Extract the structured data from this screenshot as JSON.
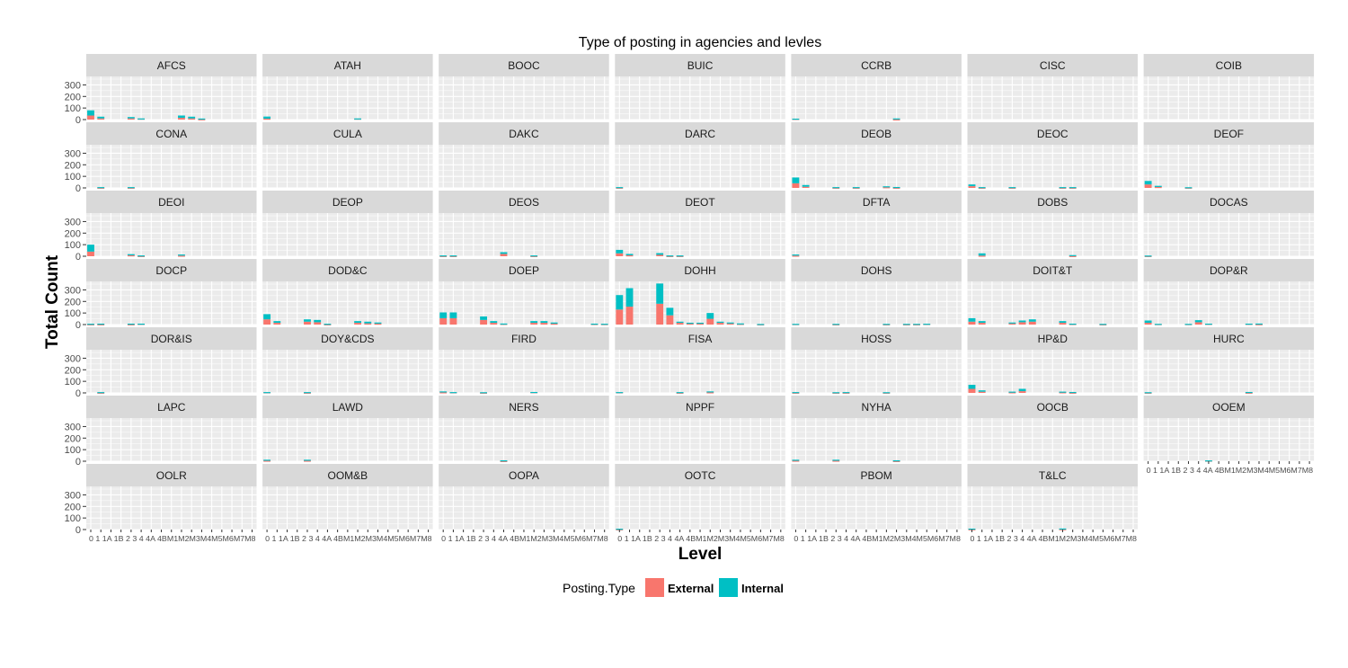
{
  "chart_data": {
    "type": "bar",
    "title": "Type of posting in agencies and levles",
    "xlabel": "Level",
    "ylabel": "Total Count",
    "stacked": true,
    "facet_wrap_columns": 7,
    "ylim": [
      0,
      350
    ],
    "y_ticks": [
      "0",
      "100",
      "200",
      "300"
    ],
    "grid": true,
    "legend_position": "bottom",
    "x_levels": [
      "0",
      "1",
      "1A",
      "1B",
      "2",
      "3",
      "4",
      "4A",
      "4B",
      "M1",
      "M2",
      "M3",
      "M4",
      "M5",
      "M6",
      "M7",
      "M8"
    ],
    "x_tick_text": "0   1 1A 1B  2   3   4 4A 4BM1M2M3M4M5M6M7M8",
    "legend": {
      "title": "Posting.Type",
      "items": [
        {
          "label": "External",
          "color": "#F8766D"
        },
        {
          "label": "Internal",
          "color": "#00BFC4"
        }
      ]
    },
    "series_order": [
      "External",
      "Internal"
    ],
    "panels": [
      {
        "name": "AFCS",
        "bars": {
          "0": [
            35,
            45
          ],
          "1": [
            10,
            15
          ],
          "2": [
            10,
            12
          ],
          "3": [
            8,
            2
          ],
          "M1": [
            15,
            20
          ],
          "M2": [
            10,
            15
          ],
          "M3": [
            3,
            6
          ]
        }
      },
      {
        "name": "ATAH",
        "bars": {
          "0": [
            8,
            18
          ],
          "M1": [
            8,
            2
          ]
        }
      },
      {
        "name": "BOOC",
        "bars": {}
      },
      {
        "name": "BUIC",
        "bars": {}
      },
      {
        "name": "CCRB",
        "bars": {
          "0": [
            6,
            2
          ],
          "M2": [
            2,
            8
          ]
        }
      },
      {
        "name": "CISC",
        "bars": {}
      },
      {
        "name": "COIB",
        "bars": {}
      },
      {
        "name": "CONA",
        "bars": {
          "1": [
            2,
            5
          ],
          "2": [
            2,
            5
          ]
        }
      },
      {
        "name": "CULA",
        "bars": {}
      },
      {
        "name": "DAKC",
        "bars": {}
      },
      {
        "name": "DARC",
        "bars": {
          "0": [
            2,
            5
          ]
        }
      },
      {
        "name": "DEOB",
        "bars": {
          "0": [
            40,
            50
          ],
          "1": [
            10,
            15
          ],
          "2": [
            2,
            5
          ],
          "4": [
            2,
            5
          ],
          "M1": [
            6,
            8
          ],
          "M2": [
            2,
            6
          ]
        }
      },
      {
        "name": "DEOC",
        "bars": {
          "0": [
            15,
            15
          ],
          "1": [
            2,
            5
          ],
          "2": [
            2,
            5
          ],
          "M1": [
            2,
            5
          ],
          "M2": [
            2,
            5
          ]
        }
      },
      {
        "name": "DEOF",
        "bars": {
          "0": [
            30,
            30
          ],
          "1": [
            8,
            10
          ],
          "2": [
            2,
            4
          ]
        }
      },
      {
        "name": "DEOI",
        "bars": {
          "0": [
            40,
            60
          ],
          "2": [
            8,
            10
          ],
          "3": [
            2,
            5
          ],
          "M1": [
            5,
            10
          ]
        }
      },
      {
        "name": "DEOP",
        "bars": {}
      },
      {
        "name": "DEOS",
        "bars": {
          "0": [
            2,
            5
          ],
          "1": [
            2,
            5
          ],
          "4": [
            20,
            15
          ],
          "M1": [
            2,
            5
          ]
        }
      },
      {
        "name": "DEOT",
        "bars": {
          "0": [
            25,
            30
          ],
          "1": [
            8,
            12
          ],
          "2": [
            12,
            15
          ],
          "3": [
            2,
            5
          ],
          "4": [
            2,
            5
          ]
        }
      },
      {
        "name": "DFTA",
        "bars": {
          "0": [
            5,
            10
          ]
        }
      },
      {
        "name": "DOBS",
        "bars": {
          "1": [
            5,
            20
          ],
          "M2": [
            2,
            8
          ]
        }
      },
      {
        "name": "DOCAS",
        "bars": {
          "0": [
            2,
            4
          ]
        }
      },
      {
        "name": "DOCP",
        "bars": {
          "0": [
            2,
            5
          ],
          "1": [
            2,
            6
          ],
          "2": [
            2,
            6
          ],
          "3": [
            6,
            2
          ]
        }
      },
      {
        "name": "DOD&C",
        "bars": {
          "0": [
            45,
            45
          ],
          "1": [
            15,
            15
          ],
          "2": [
            25,
            20
          ],
          "3": [
            20,
            20
          ],
          "4": [
            2,
            5
          ],
          "M1": [
            15,
            15
          ],
          "M2": [
            10,
            15
          ],
          "M3": [
            8,
            10
          ]
        }
      },
      {
        "name": "DOEP",
        "bars": {
          "0": [
            55,
            50
          ],
          "1": [
            55,
            50
          ],
          "2": [
            40,
            30
          ],
          "3": [
            15,
            15
          ],
          "4": [
            6,
            3
          ],
          "M1": [
            15,
            15
          ],
          "M2": [
            15,
            15
          ],
          "M3": [
            8,
            10
          ],
          "M7": [
            5,
            3
          ],
          "M8": [
            4,
            3
          ]
        }
      },
      {
        "name": "DOHH",
        "bars": {
          "0": [
            130,
            125
          ],
          "1": [
            155,
            160
          ],
          "2": [
            180,
            175
          ],
          "3": [
            80,
            65
          ],
          "4": [
            15,
            10
          ],
          "4A": [
            8,
            8
          ],
          "4B": [
            8,
            8
          ],
          "M1": [
            50,
            50
          ],
          "M2": [
            15,
            10
          ],
          "M3": [
            10,
            8
          ],
          "M4": [
            6,
            4
          ],
          "M6": [
            2,
            3
          ]
        }
      },
      {
        "name": "DOHS",
        "bars": {
          "0": [
            4,
            2
          ],
          "2": [
            2,
            4
          ],
          "M1": [
            2,
            4
          ],
          "M3": [
            2,
            4
          ],
          "M4": [
            2,
            4
          ],
          "M5": [
            5,
            2
          ]
        }
      },
      {
        "name": "DOIT&T",
        "bars": {
          "0": [
            25,
            30
          ],
          "1": [
            15,
            15
          ],
          "2": [
            10,
            8
          ],
          "3": [
            20,
            15
          ],
          "4": [
            25,
            20
          ],
          "M1": [
            15,
            15
          ],
          "M2": [
            5,
            3
          ],
          "M5": [
            2,
            4
          ]
        }
      },
      {
        "name": "DOP&R",
        "bars": {
          "0": [
            15,
            20
          ],
          "1": [
            4,
            2
          ],
          "2": [
            4,
            2
          ],
          "3": [
            20,
            18
          ],
          "4": [
            6,
            2
          ],
          "M2": [
            6,
            2
          ],
          "M3": [
            3,
            6
          ]
        }
      },
      {
        "name": "DOR&IS",
        "bars": {
          "1": [
            2,
            5
          ]
        }
      },
      {
        "name": "DOY&CDS",
        "bars": {
          "0": [
            5,
            2
          ],
          "2": [
            2,
            5
          ]
        }
      },
      {
        "name": "FIRD",
        "bars": {
          "0": [
            5,
            8
          ],
          "1": [
            5,
            2
          ],
          "2": [
            2,
            4
          ],
          "M1": [
            6,
            2
          ]
        }
      },
      {
        "name": "FISA",
        "bars": {
          "0": [
            5,
            2
          ],
          "4": [
            2,
            5
          ],
          "M1": [
            5,
            8
          ]
        }
      },
      {
        "name": "HOSS",
        "bars": {
          "0": [
            2,
            5
          ],
          "2": [
            2,
            4
          ],
          "3": [
            2,
            5
          ],
          "M1": [
            2,
            4
          ]
        }
      },
      {
        "name": "HP&D",
        "bars": {
          "0": [
            35,
            35
          ],
          "1": [
            10,
            12
          ],
          "2": [
            5,
            6
          ],
          "3": [
            15,
            20
          ],
          "M1": [
            5,
            6
          ],
          "M2": [
            2,
            6
          ]
        }
      },
      {
        "name": "HURC",
        "bars": {
          "0": [
            2,
            4
          ],
          "M2": [
            2,
            6
          ]
        }
      },
      {
        "name": "LAPC",
        "bars": {}
      },
      {
        "name": "LAWD",
        "bars": {
          "0": [
            5,
            8
          ],
          "2": [
            5,
            8
          ]
        }
      },
      {
        "name": "NERS",
        "bars": {
          "4": [
            2,
            6
          ]
        }
      },
      {
        "name": "NPPF",
        "bars": {}
      },
      {
        "name": "NYHA",
        "bars": {
          "0": [
            5,
            8
          ],
          "2": [
            5,
            8
          ],
          "M2": [
            2,
            6
          ]
        }
      },
      {
        "name": "OOCB",
        "bars": {}
      },
      {
        "name": "OOEM",
        "bars": {
          "4": [
            5,
            2
          ]
        }
      },
      {
        "name": "OOLR",
        "bars": {}
      },
      {
        "name": "OOM&B",
        "bars": {}
      },
      {
        "name": "OOPA",
        "bars": {}
      },
      {
        "name": "OOTC",
        "bars": {
          "0": [
            2,
            5
          ]
        }
      },
      {
        "name": "PBOM",
        "bars": {}
      },
      {
        "name": "T&LC",
        "bars": {
          "0": [
            2,
            6
          ],
          "M1": [
            3,
            6
          ]
        }
      }
    ]
  }
}
